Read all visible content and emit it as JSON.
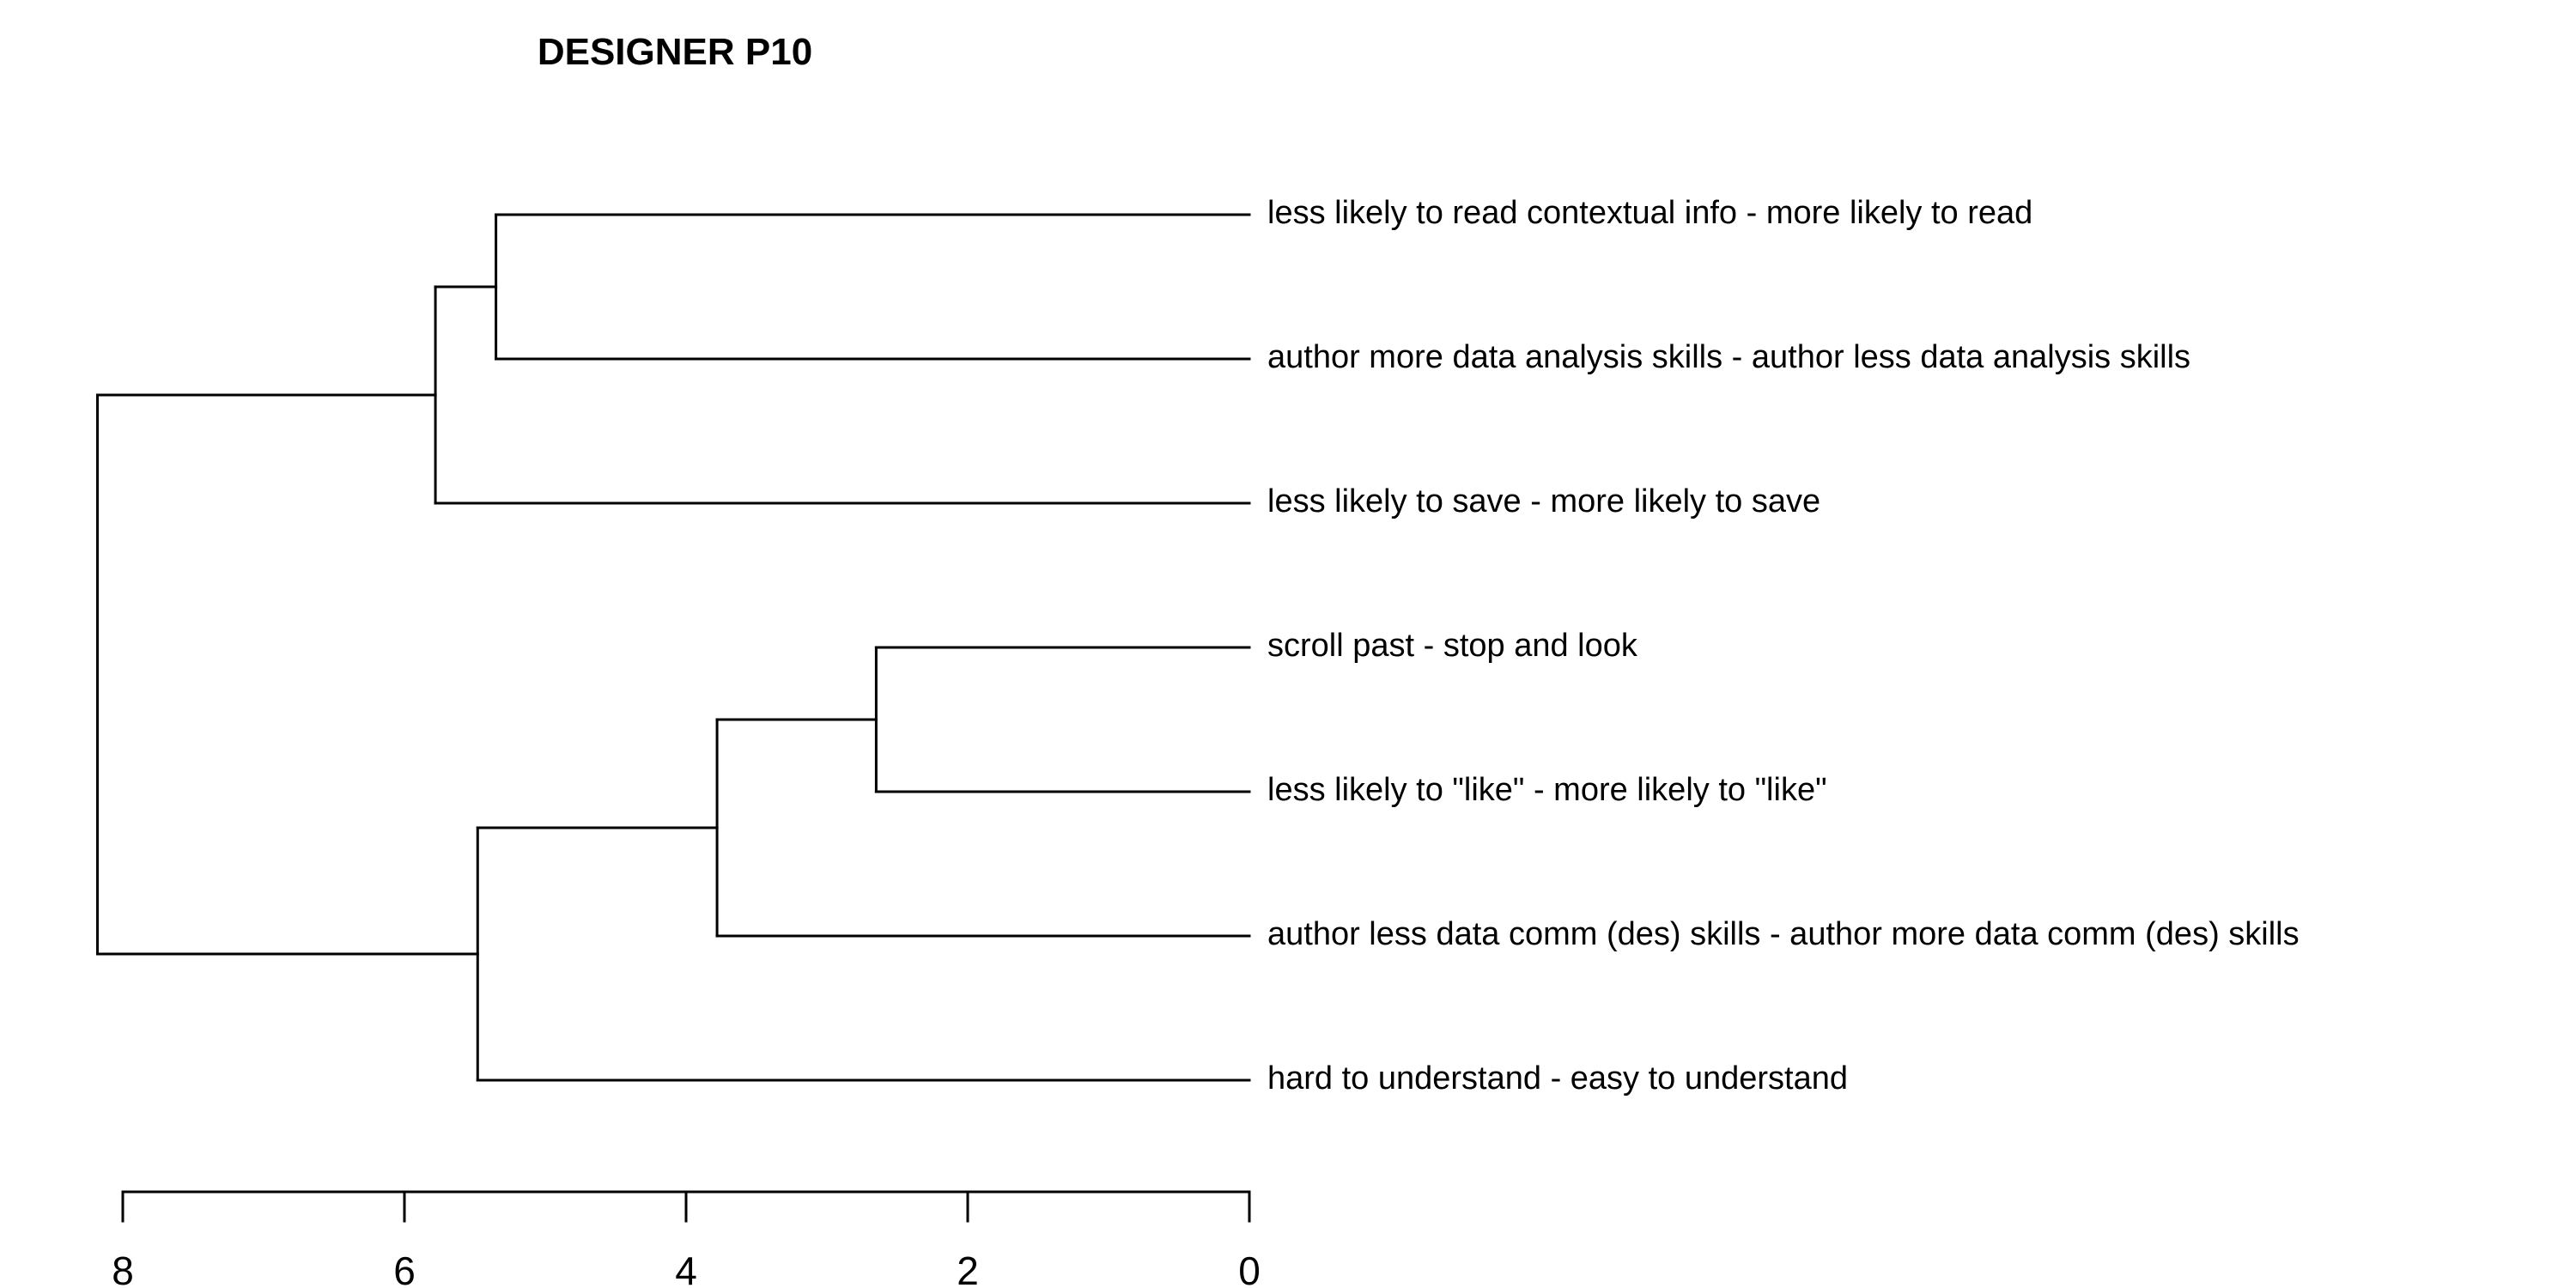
{
  "title": "DESIGNER P10",
  "leaves": [
    "less likely to read contextual info - more likely to read",
    "author more data analysis skills - author less data analysis skills",
    "less likely to save - more likely to save",
    "scroll past - stop and look",
    "less likely to \"like\" - more likely to \"like\"",
    "author less data comm (des) skills - author more data comm (des) skills",
    "hard to understand - easy to understand"
  ],
  "merges": [
    {
      "left": "L3",
      "right": "L4",
      "height": 2.65
    },
    {
      "left": "M0",
      "right": "L5",
      "height": 3.78
    },
    {
      "left": "L0",
      "right": "L1",
      "height": 5.35
    },
    {
      "left": "M1",
      "right": "L6",
      "height": 5.48
    },
    {
      "left": "M2",
      "right": "L2",
      "height": 5.78
    },
    {
      "left": "M4",
      "right": "M3",
      "height": 8.18
    }
  ],
  "axis": {
    "ticks": [
      8,
      6,
      4,
      2,
      0
    ],
    "tick_labels": [
      "8",
      "6",
      "4",
      "2",
      "0"
    ],
    "range": [
      0,
      8
    ]
  }
}
